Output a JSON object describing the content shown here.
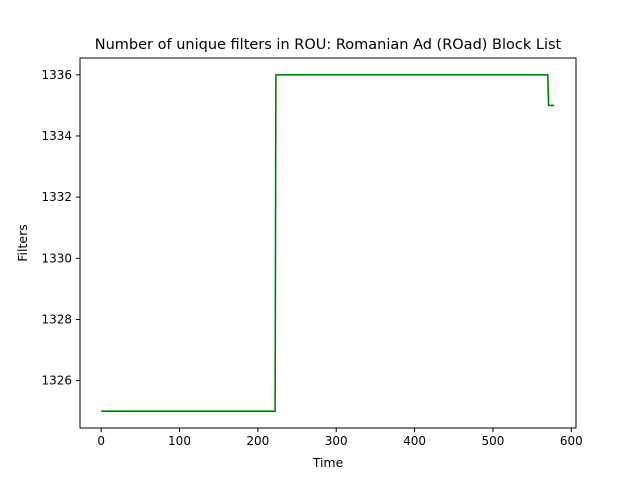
{
  "chart_data": {
    "type": "line",
    "title": "Number of unique filters in ROU: Romanian Ad (ROad) Block List",
    "xlabel": "Time",
    "ylabel": "Filters",
    "xlim": [
      -27,
      606
    ],
    "ylim": [
      1324.45,
      1336.55
    ],
    "xticks": [
      0,
      100,
      200,
      300,
      400,
      500,
      600
    ],
    "yticks": [
      1326,
      1328,
      1330,
      1332,
      1334,
      1336
    ],
    "grid": false,
    "series": [
      {
        "color": "#008000",
        "x": [
          0,
          222,
          223,
          570,
          571,
          578
        ],
        "y": [
          1325,
          1325,
          1336,
          1336,
          1335,
          1335
        ]
      }
    ]
  }
}
